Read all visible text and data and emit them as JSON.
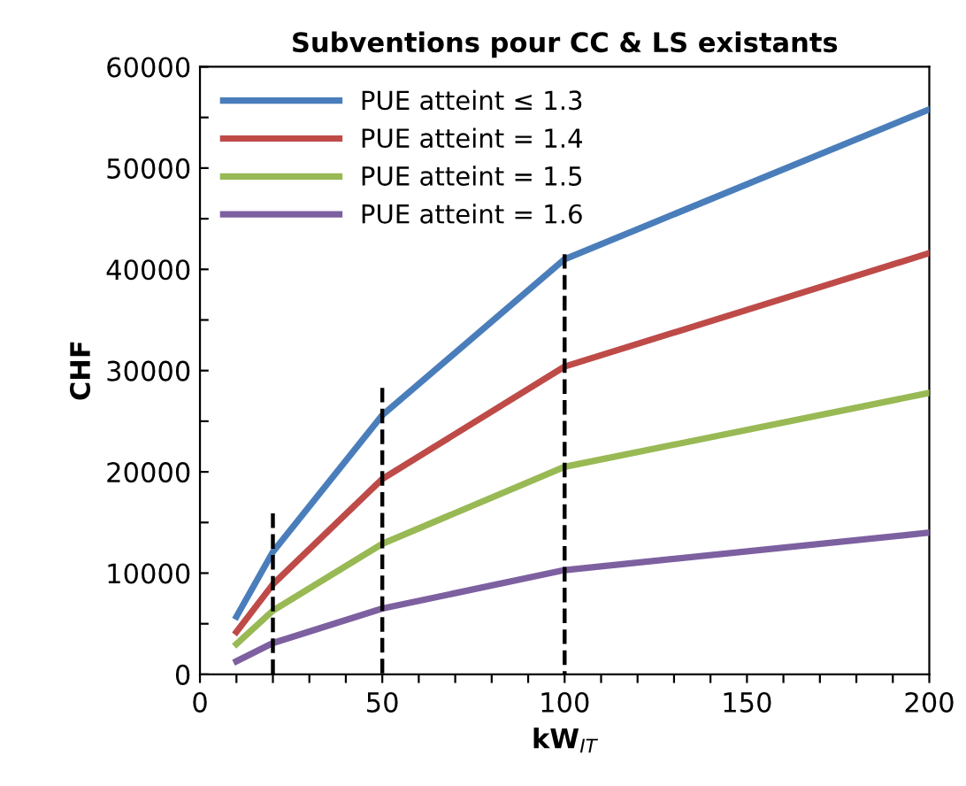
{
  "chart_data": {
    "type": "line",
    "title": "Subventions pour CC & LS existants",
    "xlabel": "kW$_{IT}$",
    "ylabel": "CHF",
    "xlim": [
      0,
      200
    ],
    "ylim": [
      0,
      60000
    ],
    "xticks": [
      0,
      {
        "value": 10,
        "label": null
      },
      {
        "value": 20,
        "label": null
      },
      {
        "value": 30,
        "label": null
      },
      {
        "value": 40,
        "label": null
      },
      50,
      {
        "value": 60,
        "label": null
      },
      {
        "value": 70,
        "label": null
      },
      {
        "value": 80,
        "label": null
      },
      {
        "value": 90,
        "label": null
      },
      100,
      {
        "value": 110,
        "label": null
      },
      {
        "value": 120,
        "label": null
      },
      {
        "value": 130,
        "label": null
      },
      {
        "value": 140,
        "label": null
      },
      150,
      {
        "value": 160,
        "label": null
      },
      {
        "value": 170,
        "label": null
      },
      {
        "value": 180,
        "label": null
      },
      {
        "value": 190,
        "label": null
      },
      200
    ],
    "yticks": [
      0,
      {
        "value": 5000,
        "label": null
      },
      10000,
      {
        "value": 15000,
        "label": null
      },
      20000,
      {
        "value": 25000,
        "label": null
      },
      30000,
      {
        "value": 35000,
        "label": null
      },
      40000,
      {
        "value": 45000,
        "label": null
      },
      50000,
      {
        "value": 55000,
        "label": null
      },
      60000
    ],
    "x": [
      10,
      20,
      50,
      100,
      200
    ],
    "grid": false,
    "legend": "top left",
    "marker": "none",
    "line_style": "solid",
    "series": [
      {
        "name": "PUE atteint ≤ 1.3",
        "color": "#4a7ebb",
        "values": [
          5700,
          12100,
          25600,
          41000,
          55800
        ]
      },
      {
        "name": "PUE atteint = 1.4",
        "color": "#be4b48",
        "values": [
          4200,
          8900,
          19300,
          30400,
          41600
        ]
      },
      {
        "name": "PUE atteint = 1.5",
        "color": "#98b954",
        "values": [
          3000,
          6300,
          12900,
          20500,
          27800
        ]
      },
      {
        "name": "PUE atteint = 1.6",
        "color": "#7d60a0",
        "values": [
          1300,
          3100,
          6500,
          10300,
          14000
        ]
      },
      {
        "color": "#000000",
        "x": [
          20,
          20
        ],
        "values": [
          15900,
          0
        ],
        "line_style": "dashed"
      },
      {
        "color": "#000000",
        "x": [
          50,
          50
        ],
        "values": [
          28300,
          0
        ],
        "line_style": "dashed"
      },
      {
        "color": "#000000",
        "x": [
          100,
          100
        ],
        "values": [
          41500,
          0
        ],
        "line_style": "dashed"
      }
    ]
  }
}
